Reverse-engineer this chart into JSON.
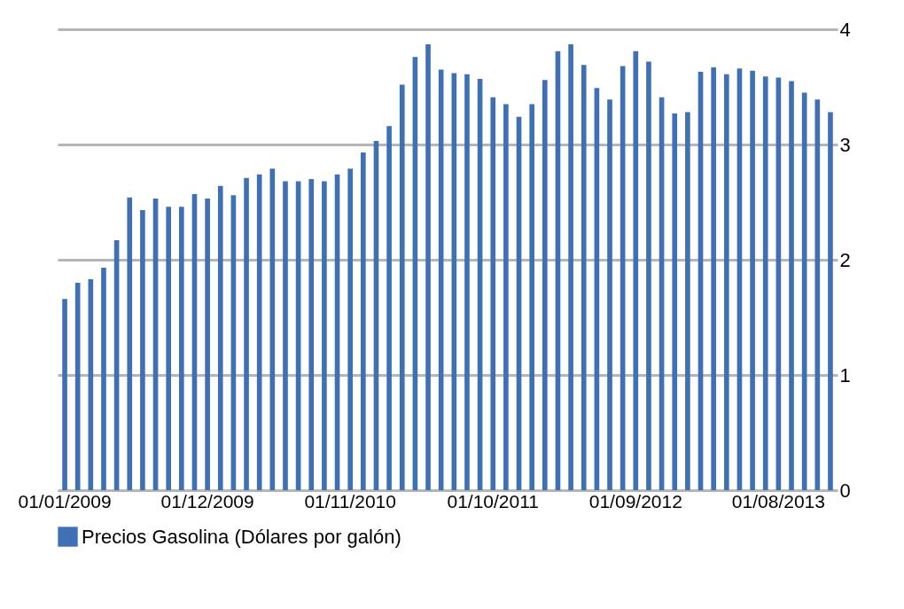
{
  "chart_data": {
    "type": "bar",
    "categories": [
      "01/01/2009",
      null,
      null,
      null,
      null,
      null,
      null,
      null,
      null,
      null,
      null,
      "01/12/2009",
      null,
      null,
      null,
      null,
      null,
      null,
      null,
      null,
      null,
      null,
      "01/11/2010",
      null,
      null,
      null,
      null,
      null,
      null,
      null,
      null,
      null,
      null,
      "01/10/2011",
      null,
      null,
      null,
      null,
      null,
      null,
      null,
      null,
      null,
      null,
      "01/09/2012",
      null,
      null,
      null,
      null,
      null,
      null,
      null,
      null,
      null,
      null,
      "01/08/2013",
      null,
      null,
      null,
      null
    ],
    "series": [
      {
        "name": "Precios Gasolina (Dólares por galón)",
        "color": "#3f70b3",
        "values": [
          1.66,
          1.8,
          1.83,
          1.93,
          2.17,
          2.54,
          2.43,
          2.53,
          2.46,
          2.46,
          2.57,
          2.53,
          2.64,
          2.56,
          2.71,
          2.74,
          2.79,
          2.68,
          2.68,
          2.7,
          2.68,
          2.74,
          2.79,
          2.93,
          3.03,
          3.16,
          3.52,
          3.76,
          3.87,
          3.65,
          3.62,
          3.61,
          3.57,
          3.41,
          3.35,
          3.24,
          3.35,
          3.56,
          3.81,
          3.87,
          3.69,
          3.49,
          3.39,
          3.68,
          3.81,
          3.72,
          3.41,
          3.27,
          3.28,
          3.63,
          3.67,
          3.61,
          3.66,
          3.64,
          3.59,
          3.58,
          3.55,
          3.45,
          3.39,
          3.28
        ]
      }
    ],
    "ylim": [
      0,
      4
    ],
    "yticks": [
      0,
      1,
      2,
      3,
      4
    ],
    "grid": "y",
    "legend": "bottom"
  }
}
